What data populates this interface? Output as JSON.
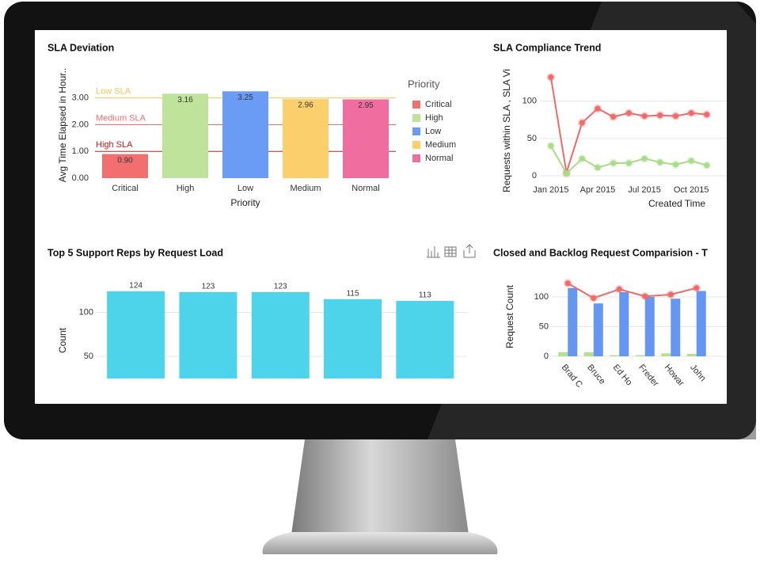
{
  "chart_data": [
    {
      "type": "bar",
      "title": "SLA Deviation",
      "y_label": "Avg Time Elapsed in Hour..",
      "x_label": "Priority",
      "categories": [
        "Critical",
        "High",
        "Low",
        "Medium",
        "Normal"
      ],
      "values": [
        0.9,
        3.16,
        3.25,
        2.96,
        2.95
      ],
      "value_labels": [
        "0.90",
        "3.16",
        "3.25",
        "2.96",
        "2.95"
      ],
      "colors": [
        "#f26f6f",
        "#bfe39b",
        "#6a9cf6",
        "#fbd06c",
        "#f06d9f"
      ],
      "ylim": [
        0,
        4
      ],
      "yticks": [
        {
          "value": 0,
          "label": "0.00"
        },
        {
          "value": 1,
          "label": "1.00"
        },
        {
          "value": 2,
          "label": "2.00"
        },
        {
          "value": 3,
          "label": "3.00"
        }
      ],
      "grid": false,
      "data_labels": true,
      "reference_lines": [
        {
          "label": "Low SLA",
          "value": 3,
          "color": "#f2c65a"
        },
        {
          "label": "Medium SLA",
          "value": 2,
          "color": "#f07070"
        },
        {
          "label": "High SLA",
          "value": 1,
          "color": "#d01818"
        }
      ],
      "legend": {
        "title": "Priority",
        "position": "right"
      }
    },
    {
      "type": "line",
      "title": "SLA Compliance Trend",
      "y_label": "Requests within SLA , SLA Vi",
      "x_label": "Created Time",
      "categories": [
        "Jan 2015",
        null,
        null,
        "Apr 2015",
        null,
        null,
        "Jul 2015",
        null,
        null,
        "Oct 2015",
        null
      ],
      "series": [
        {
          "color": "#f06a6a",
          "values": [
            132,
            4,
            71,
            90,
            79,
            84,
            80,
            81,
            80,
            84,
            82
          ]
        },
        {
          "color": "#a9dc88",
          "values": [
            40,
            3,
            23,
            11,
            17,
            17,
            23,
            18,
            15,
            20,
            14
          ]
        }
      ],
      "ylim": [
        0,
        140
      ],
      "yticks": [
        0,
        50,
        100
      ],
      "grid": true
    },
    {
      "type": "bar",
      "title": "Top 5 Support Reps by Request Load",
      "y_label": "Count",
      "categories": [
        null,
        null,
        null,
        null,
        null
      ],
      "values": [
        124,
        123,
        123,
        115,
        113
      ],
      "color": "#4dd3ea",
      "ylim": [
        25,
        140
      ],
      "yticks": [
        50,
        100
      ],
      "grid": true,
      "data_labels": true
    },
    {
      "type": "bar",
      "title": "Closed and Backlog Request Comparision - T",
      "y_label": "Request Count",
      "categories": [
        "Brad C",
        "Bruce",
        "Ed Ho",
        "Freder",
        "Howar",
        "John"
      ],
      "series": [
        {
          "color": "#b5e08f",
          "values": [
            7,
            7,
            2,
            2,
            5,
            4
          ]
        },
        {
          "color": "#6496f2",
          "values": [
            115,
            89,
            108,
            100,
            97,
            110
          ]
        },
        {
          "type": "line",
          "color": "#f06a6a",
          "values": [
            123,
            98,
            113,
            101,
            104,
            115
          ]
        }
      ],
      "ylim": [
        0,
        140
      ],
      "yticks": [
        0,
        50,
        100
      ],
      "grid": true
    }
  ]
}
